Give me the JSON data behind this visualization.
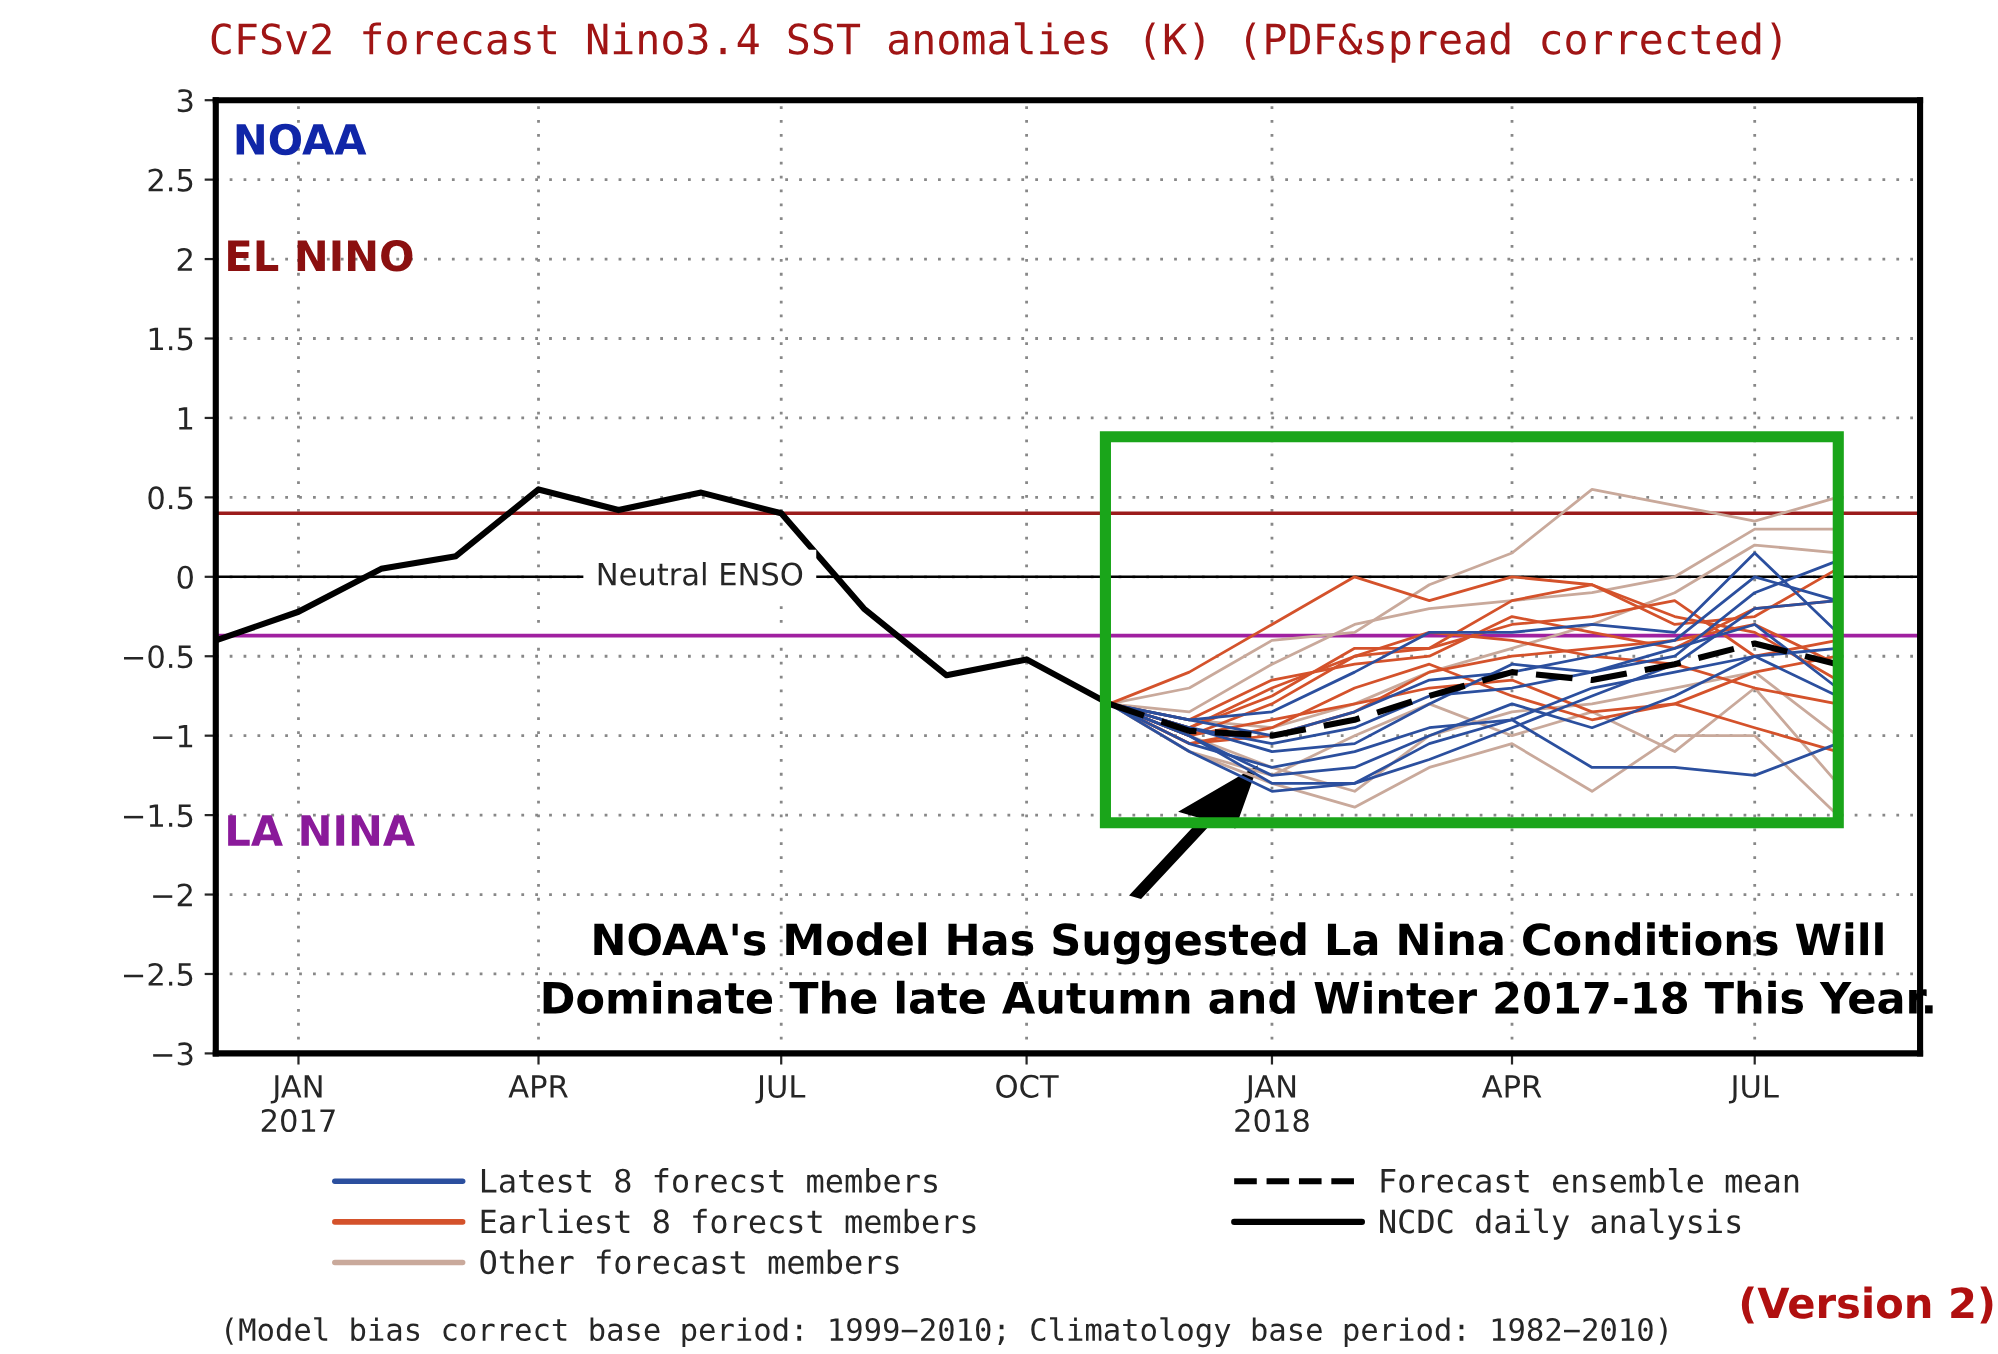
{
  "chart_data": {
    "type": "line",
    "title": "CFSv2 forecast Nino3.4 SST anomalies (K) (PDF&spread corrected)",
    "xlim": [
      "2016-12-01",
      "2018-09-01"
    ],
    "xticks": [
      {
        "value": "2017-01",
        "label": "JAN\n2017"
      },
      {
        "value": "2017-04",
        "label": "APR"
      },
      {
        "value": "2017-07",
        "label": "JUL"
      },
      {
        "value": "2017-10",
        "label": "OCT"
      },
      {
        "value": "2018-01",
        "label": "JAN\n2018"
      },
      {
        "value": "2018-04",
        "label": "APR"
      },
      {
        "value": "2018-07",
        "label": "JUL"
      }
    ],
    "ylim": [
      -3,
      3
    ],
    "yticks": [
      {
        "value": -3,
        "label": "−3"
      },
      {
        "value": -2.5,
        "label": "−2.5"
      },
      {
        "value": -2,
        "label": "−2"
      },
      {
        "value": -1.5,
        "label": "−1.5"
      },
      {
        "value": -1,
        "label": "−1"
      },
      {
        "value": -0.5,
        "label": "−0.5"
      },
      0,
      0.5,
      1,
      1.5,
      2,
      2.5,
      3
    ],
    "grid": true,
    "legend": "bottom",
    "ref_lines": [
      {
        "axis": "y",
        "value": 0.4,
        "label": null,
        "color": "#9b1c1c"
      },
      {
        "axis": "y",
        "value": -0.37,
        "label": null,
        "color": "#a020a0"
      },
      {
        "axis": "y",
        "value": 0,
        "label": "Neutral ENSO",
        "color": "#000000"
      }
    ],
    "x": [
      "2017-11",
      "2017-12",
      "2018-01",
      "2018-02",
      "2018-03",
      "2018-04",
      "2018-05",
      "2018-06",
      "2018-07",
      "2018-08"
    ],
    "series": [
      {
        "name": "Other forecast members",
        "color": "#c9a99b",
        "values": [
          -0.8,
          -0.7,
          -0.4,
          -0.35,
          -0.05,
          0.15,
          0.55,
          0.45,
          0.35,
          0.5
        ]
      },
      {
        "color": "#c9a99b",
        "values": [
          -0.8,
          -0.85,
          -0.55,
          -0.3,
          -0.2,
          -0.15,
          -0.1,
          0.0,
          0.3,
          0.3
        ]
      },
      {
        "color": "#c9a99b",
        "values": [
          -0.8,
          -1.1,
          -1.3,
          -1.45,
          -1.2,
          -1.05,
          -1.35,
          -1.0,
          -1.0,
          -1.5
        ]
      },
      {
        "color": "#c9a99b",
        "values": [
          -0.8,
          -1.0,
          -1.2,
          -1.35,
          -1.0,
          -0.85,
          -0.8,
          -0.7,
          -0.6,
          -1.0
        ]
      },
      {
        "color": "#c9a99b",
        "values": [
          -0.8,
          -0.9,
          -0.95,
          -0.8,
          -0.6,
          -0.45,
          -0.3,
          -0.1,
          0.2,
          0.15
        ]
      },
      {
        "color": "#c9a99b",
        "values": [
          -0.8,
          -1.1,
          -1.25,
          -1.0,
          -0.8,
          -1.0,
          -0.85,
          -1.1,
          -0.7,
          -1.3
        ]
      },
      {
        "name": "Earliest 8 forecst members",
        "color": "#d4522b",
        "values": [
          -0.8,
          -0.6,
          -0.3,
          0.0,
          -0.15,
          0.0,
          -0.05,
          -0.25,
          -0.35,
          -0.65
        ]
      },
      {
        "color": "#d4522b",
        "values": [
          -0.8,
          -1.0,
          -0.8,
          -0.5,
          -0.45,
          -0.15,
          -0.05,
          -0.3,
          -0.25,
          0.05
        ]
      },
      {
        "color": "#d4522b",
        "values": [
          -0.8,
          -0.95,
          -0.75,
          -0.45,
          -0.45,
          -0.3,
          -0.25,
          -0.15,
          -0.5,
          -0.4
        ]
      },
      {
        "color": "#d4522b",
        "values": [
          -0.8,
          -1.05,
          -0.95,
          -0.7,
          -0.55,
          -0.75,
          -0.9,
          -0.8,
          -0.6,
          -0.5
        ]
      },
      {
        "color": "#d4522b",
        "values": [
          -0.8,
          -1.0,
          -0.9,
          -0.8,
          -0.7,
          -0.65,
          -0.85,
          -0.8,
          -0.95,
          -1.1
        ]
      },
      {
        "color": "#d4522b",
        "values": [
          -0.8,
          -0.95,
          -0.7,
          -0.5,
          -0.35,
          -0.4,
          -0.5,
          -0.55,
          -0.7,
          -0.8
        ]
      },
      {
        "color": "#d4522b",
        "values": [
          -0.8,
          -1.05,
          -1.0,
          -0.85,
          -0.6,
          -0.5,
          -0.45,
          -0.4,
          -0.3,
          -0.55
        ]
      },
      {
        "color": "#d4522b",
        "values": [
          -0.8,
          -0.9,
          -0.65,
          -0.55,
          -0.5,
          -0.25,
          -0.35,
          -0.45,
          -0.2,
          -0.15
        ]
      },
      {
        "name": "Latest 8 forecst members",
        "color": "#2b4f9e",
        "values": [
          -0.8,
          -1.0,
          -1.3,
          -1.3,
          -1.05,
          -0.9,
          -1.2,
          -1.2,
          -1.25,
          -1.05
        ]
      },
      {
        "color": "#2b4f9e",
        "values": [
          -0.8,
          -0.95,
          -1.1,
          -1.05,
          -0.8,
          -0.55,
          -0.6,
          -0.5,
          -0.1,
          0.1
        ]
      },
      {
        "color": "#2b4f9e",
        "values": [
          -0.8,
          -0.9,
          -0.85,
          -0.6,
          -0.35,
          -0.35,
          -0.3,
          -0.35,
          0.15,
          -0.35
        ]
      },
      {
        "color": "#2b4f9e",
        "values": [
          -0.8,
          -1.05,
          -1.2,
          -1.1,
          -0.95,
          -0.9,
          -0.7,
          -0.6,
          -0.5,
          -0.75
        ]
      },
      {
        "color": "#2b4f9e",
        "values": [
          -0.8,
          -1.1,
          -1.35,
          -1.3,
          -1.15,
          -0.95,
          -0.75,
          -0.55,
          -0.2,
          -0.15
        ]
      },
      {
        "color": "#2b4f9e",
        "values": [
          -0.8,
          -0.95,
          -1.05,
          -0.95,
          -0.75,
          -0.7,
          -0.6,
          -0.45,
          -0.3,
          -0.7
        ]
      },
      {
        "color": "#2b4f9e",
        "values": [
          -0.8,
          -1.0,
          -1.25,
          -1.2,
          -1.0,
          -0.8,
          -0.95,
          -0.75,
          -0.5,
          -0.45
        ]
      },
      {
        "color": "#2b4f9e",
        "values": [
          -0.8,
          -0.9,
          -1.0,
          -0.85,
          -0.65,
          -0.6,
          -0.5,
          -0.4,
          0.0,
          -0.15
        ]
      },
      {
        "name": "Forecast ensemble mean",
        "color": "#000000",
        "line_style": "dashed",
        "values": [
          -0.8,
          -0.97,
          -1.0,
          -0.9,
          -0.75,
          -0.6,
          -0.65,
          -0.55,
          -0.42,
          -0.55
        ]
      },
      {
        "name": "NCDC daily analysis",
        "color": "#000000",
        "line_style": "solid",
        "x": [
          "2016-12",
          "2017-01",
          "2017-02",
          "2017-03",
          "2017-04",
          "2017-05",
          "2017-06",
          "2017-07",
          "2017-08",
          "2017-09",
          "2017-10",
          "2017-11"
        ],
        "values": [
          -0.4,
          -0.22,
          0.05,
          0.13,
          0.55,
          0.42,
          0.53,
          0.4,
          -0.2,
          -0.62,
          -0.52,
          -0.8
        ]
      }
    ],
    "annotations": [
      "NOAA",
      "EL NINO",
      "LA NINA",
      "NOAA's Model Has Suggested La Nina Conditions Will\nDominate The late Autumn and Winter 2017-18 This Year.",
      "(Version 2)",
      "(Model bias correct base period: 1999−2010; Climatology base period: 1982−2010)"
    ]
  }
}
